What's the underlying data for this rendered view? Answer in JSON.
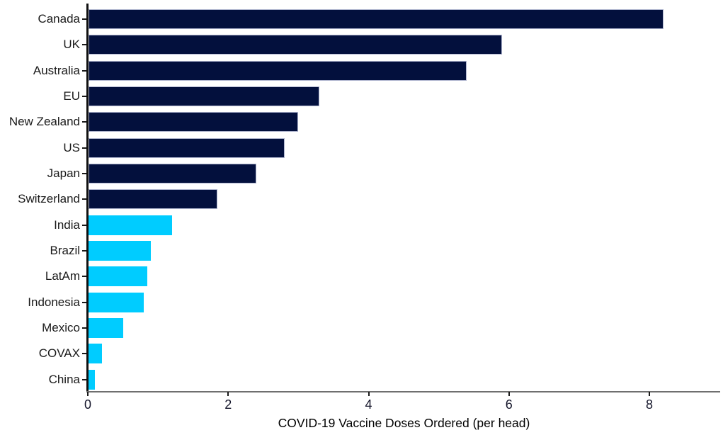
{
  "chart_data": {
    "type": "bar",
    "orientation": "horizontal",
    "title": "",
    "xlabel": "COVID-19 Vaccine Doses Ordered (per head)",
    "ylabel": "",
    "categories": [
      "Canada",
      "UK",
      "Australia",
      "EU",
      "New Zealand",
      "US",
      "Japan",
      "Switzerland",
      "India",
      "Brazil",
      "LatAm",
      "Indonesia",
      "Mexico",
      "COVAX",
      "China"
    ],
    "values": [
      8.2,
      5.9,
      5.4,
      3.3,
      3.0,
      2.8,
      2.4,
      1.85,
      1.2,
      0.9,
      0.85,
      0.8,
      0.5,
      0.2,
      0.1
    ],
    "bar_color_keys": [
      "navy",
      "navy",
      "navy",
      "navy",
      "navy",
      "navy",
      "navy",
      "navy",
      "cyan",
      "cyan",
      "cyan",
      "cyan",
      "cyan",
      "cyan",
      "cyan"
    ],
    "colors": {
      "navy": "#03103D",
      "cyan": "#00CCFF",
      "navy_border": "#AEB4CE"
    },
    "x_ticks": [
      0,
      2,
      4,
      6,
      8
    ],
    "xlim": [
      0,
      9
    ],
    "grid": false,
    "legend": null
  }
}
